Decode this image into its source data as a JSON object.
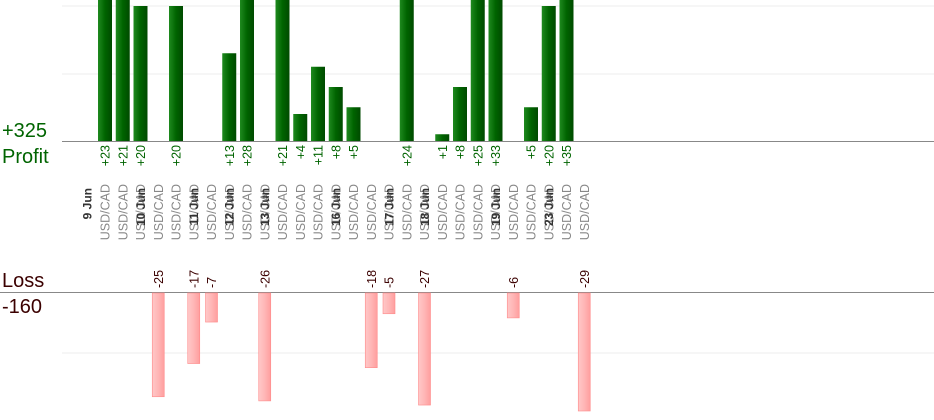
{
  "labels": {
    "profit_total": "+325",
    "profit_word": "Profit",
    "loss_word": "Loss",
    "loss_total": "-160"
  },
  "colors": {
    "profit_bar": "#006400",
    "loss_bar": "#ffb6b6",
    "profit_text": "#006400",
    "loss_text": "#3b0000",
    "pair_text": "#888888",
    "date_text": "#333333"
  },
  "chart_data": {
    "type": "bar",
    "pair": "USD/CAD",
    "ylim_profit": [
      0,
      20
    ],
    "ylim_loss": [
      -25,
      0
    ],
    "dates": [
      "9 Jun",
      "10 Jun",
      "11 Jun",
      "12 Jun",
      "13 Jun",
      "16 Jun",
      "17 Jun",
      "18 Jun",
      "19 Jun",
      "23 Jun"
    ],
    "trades": [
      {
        "value": 23,
        "date": "9 Jun"
      },
      {
        "value": 21,
        "date": "9 Jun"
      },
      {
        "value": 20,
        "date": "9 Jun"
      },
      {
        "value": -25,
        "date": "10 Jun"
      },
      {
        "value": 20,
        "date": "10 Jun"
      },
      {
        "value": -17,
        "date": "10 Jun"
      },
      {
        "value": -7,
        "date": "11 Jun"
      },
      {
        "value": 13,
        "date": "11 Jun"
      },
      {
        "value": 28,
        "date": "12 Jun"
      },
      {
        "value": -26,
        "date": "12 Jun"
      },
      {
        "value": 21,
        "date": "13 Jun"
      },
      {
        "value": 4,
        "date": "13 Jun"
      },
      {
        "value": 11,
        "date": "13 Jun"
      },
      {
        "value": 8,
        "date": "13 Jun"
      },
      {
        "value": 5,
        "date": "16 Jun"
      },
      {
        "value": -18,
        "date": "16 Jun"
      },
      {
        "value": -5,
        "date": "16 Jun"
      },
      {
        "value": 24,
        "date": "17 Jun"
      },
      {
        "value": -27,
        "date": "17 Jun"
      },
      {
        "value": 1,
        "date": "18 Jun"
      },
      {
        "value": 8,
        "date": "18 Jun"
      },
      {
        "value": 25,
        "date": "18 Jun"
      },
      {
        "value": 33,
        "date": "18 Jun"
      },
      {
        "value": -6,
        "date": "19 Jun"
      },
      {
        "value": 5,
        "date": "19 Jun"
      },
      {
        "value": 20,
        "date": "19 Jun"
      },
      {
        "value": 35,
        "date": "23 Jun"
      },
      {
        "value": -29,
        "date": "23 Jun"
      }
    ]
  }
}
